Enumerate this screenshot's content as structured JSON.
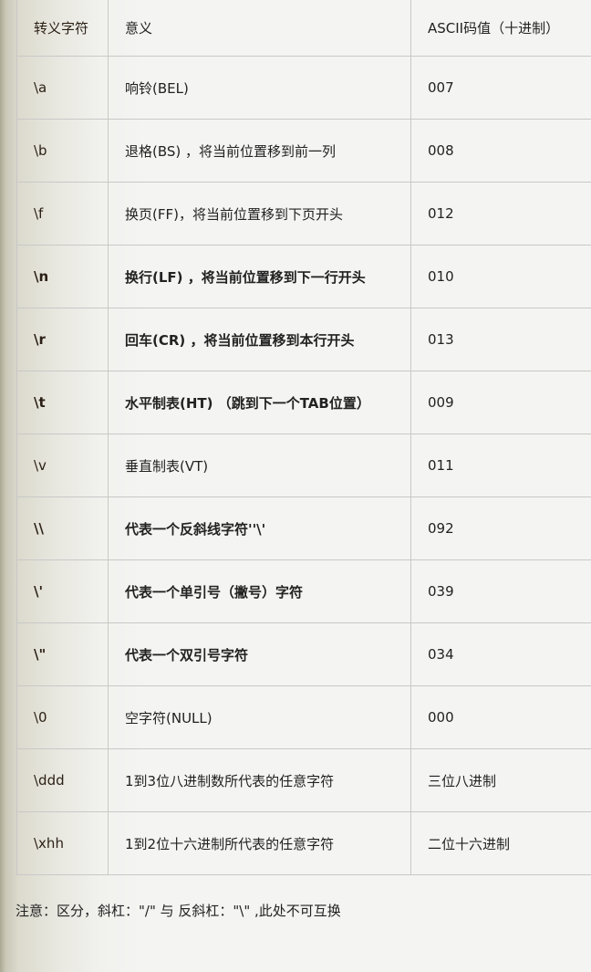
{
  "table": {
    "headers": [
      "转义字符",
      "意义",
      "ASCII码值（十进制）"
    ],
    "rows": [
      {
        "escape": "\\a",
        "meaning": "响铃(BEL)",
        "ascii": "007",
        "bold": false
      },
      {
        "escape": "\\b",
        "meaning": "退格(BS) ，将当前位置移到前一列",
        "ascii": "008",
        "bold": false
      },
      {
        "escape": "\\f",
        "meaning": "换页(FF)，将当前位置移到下页开头",
        "ascii": "012",
        "bold": false
      },
      {
        "escape": "\\n",
        "meaning": "换行(LF) ，将当前位置移到下一行开头",
        "ascii": "010",
        "bold": true
      },
      {
        "escape": "\\r",
        "meaning": "回车(CR) ，将当前位置移到本行开头",
        "ascii": "013",
        "bold": true
      },
      {
        "escape": "\\t",
        "meaning": "水平制表(HT) （跳到下一个TAB位置）",
        "ascii": "009",
        "bold": true
      },
      {
        "escape": "\\v",
        "meaning": "垂直制表(VT)",
        "ascii": "011",
        "bold": false
      },
      {
        "escape": "\\\\",
        "meaning": "代表一个反斜线字符''\\'",
        "ascii": "092",
        "bold": true
      },
      {
        "escape": "\\'",
        "meaning": "代表一个单引号（撇号）字符",
        "ascii": "039",
        "bold": true
      },
      {
        "escape": "\\\"",
        "meaning": "代表一个双引号字符",
        "ascii": "034",
        "bold": true
      },
      {
        "escape": "\\0",
        "meaning": "空字符(NULL)",
        "ascii": "000",
        "bold": false
      },
      {
        "escape": "\\ddd",
        "meaning": "1到3位八进制数所代表的任意字符",
        "ascii": "三位八进制",
        "bold": false
      },
      {
        "escape": "\\xhh",
        "meaning": "1到2位十六进制所代表的任意字符",
        "ascii": "二位十六进制",
        "bold": false
      }
    ]
  },
  "note": "注意：区分，斜杠：\"/\" 与 反斜杠：\"\\\" ,此处不可互换"
}
